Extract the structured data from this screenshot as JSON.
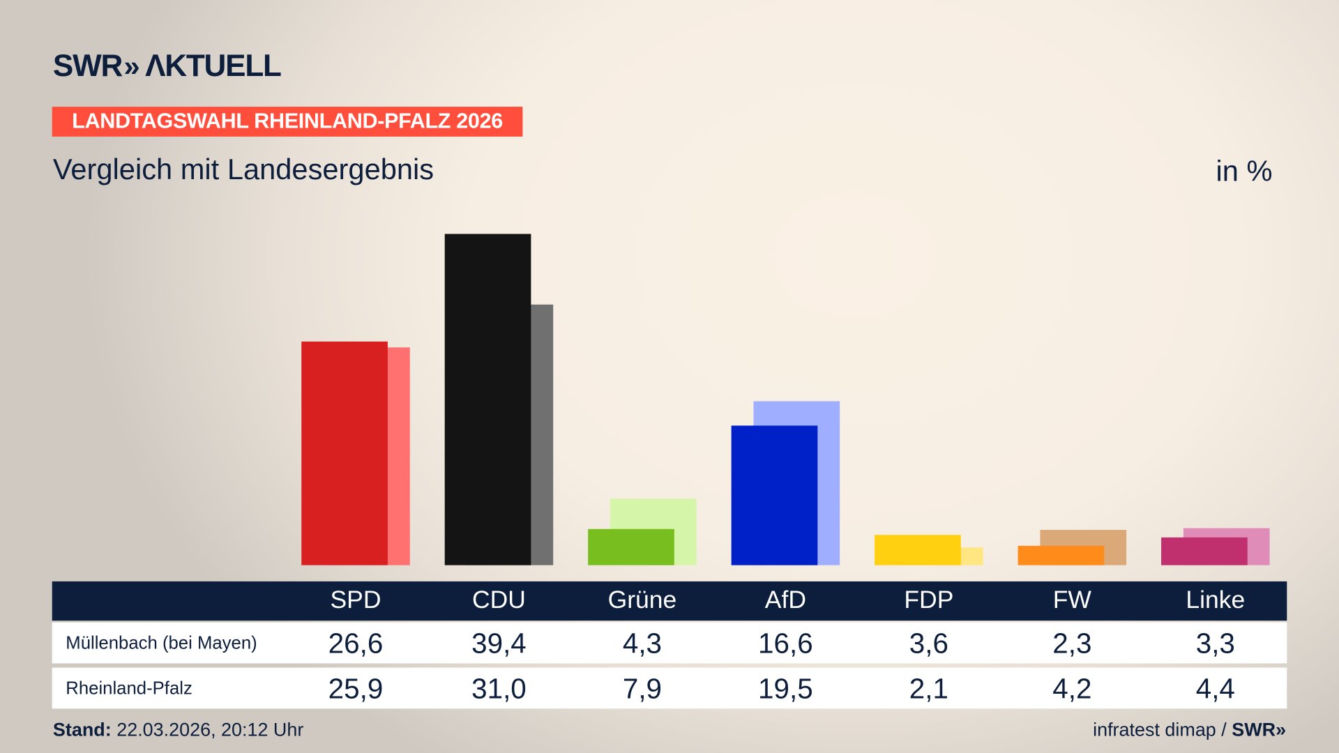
{
  "header": {
    "logo_text": "SWR AKTUELL",
    "badge": "LANDTAGSWAHL RHEINLAND-PFALZ 2026",
    "subtitle": "Vergleich mit Landesergebnis",
    "unit": "in %"
  },
  "footer": {
    "stand_label": "Stand:",
    "stand_value": "22.03.2026, 20:12 Uhr",
    "source": "infratest dimap /",
    "source_logo": "SWR"
  },
  "chart_data": {
    "type": "bar",
    "categories": [
      "SPD",
      "CDU",
      "Grüne",
      "AfD",
      "FDP",
      "FW",
      "Linke"
    ],
    "series": [
      {
        "name": "Müllenbach (bei Mayen)",
        "values": [
          26.6,
          39.4,
          4.3,
          16.6,
          3.6,
          2.3,
          3.3
        ],
        "labels": [
          "26,6",
          "39,4",
          "4,3",
          "16,6",
          "3,6",
          "2,3",
          "3,3"
        ]
      },
      {
        "name": "Rheinland-Pfalz",
        "values": [
          25.9,
          31.0,
          7.9,
          19.5,
          2.1,
          4.2,
          4.4
        ],
        "labels": [
          "25,9",
          "31,0",
          "7,9",
          "19,5",
          "2,1",
          "4,2",
          "4,4"
        ]
      }
    ],
    "colors_primary": [
      "#d92020",
      "#141414",
      "#78be1e",
      "#0020c8",
      "#ffd010",
      "#ff8c1a",
      "#c0306e"
    ],
    "colors_secondary": [
      "#ff7070",
      "#707070",
      "#d5f5a8",
      "#a0aeff",
      "#ffe680",
      "#dba878",
      "#e08cb8"
    ],
    "ylim": [
      0,
      40
    ],
    "grid": false
  }
}
